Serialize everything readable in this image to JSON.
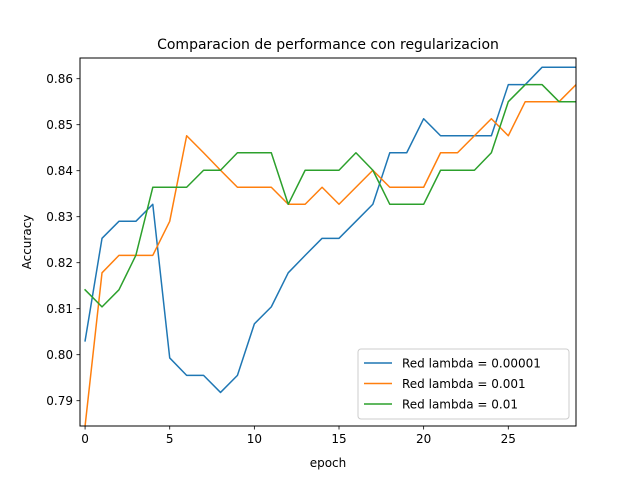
{
  "chart_data": {
    "type": "line",
    "title": "Comparacion de performance con regularizacion",
    "xlabel": "epoch",
    "ylabel": "Accuracy",
    "xlim": [
      -0.3,
      29
    ],
    "ylim": [
      0.7845,
      0.8645
    ],
    "xticks": [
      0,
      5,
      10,
      15,
      20,
      25
    ],
    "yticks": [
      0.79,
      0.8,
      0.81,
      0.82,
      0.83,
      0.84,
      0.85,
      0.86
    ],
    "ytick_labels": [
      "0.79",
      "0.80",
      "0.81",
      "0.82",
      "0.83",
      "0.84",
      "0.85",
      "0.86"
    ],
    "grid": false,
    "legend_position": "lower right",
    "x": [
      0,
      1,
      2,
      3,
      4,
      5,
      6,
      7,
      8,
      9,
      10,
      11,
      12,
      13,
      14,
      15,
      16,
      17,
      18,
      19,
      20,
      21,
      22,
      23,
      24,
      25,
      26,
      27,
      28,
      29
    ],
    "series": [
      {
        "name": "Red lambda = 0.00001",
        "color": "#1f77b4",
        "values": [
          0.803,
          0.8253,
          0.829,
          0.829,
          0.8327,
          0.7993,
          0.7955,
          0.7955,
          0.7918,
          0.7955,
          0.8067,
          0.8104,
          0.8178,
          0.8216,
          0.8253,
          0.8253,
          0.829,
          0.8327,
          0.8439,
          0.8439,
          0.8513,
          0.8476,
          0.8476,
          0.8476,
          0.8476,
          0.8587,
          0.8587,
          0.8625,
          0.8625,
          0.8625
        ]
      },
      {
        "name": "Red lambda = 0.001",
        "color": "#ff7f0e",
        "values": [
          0.7845,
          0.8178,
          0.8216,
          0.8216,
          0.8216,
          0.829,
          0.8476,
          0.8439,
          0.8401,
          0.8364,
          0.8364,
          0.8364,
          0.8327,
          0.8327,
          0.8364,
          0.8327,
          0.8364,
          0.8401,
          0.8364,
          0.8364,
          0.8364,
          0.8439,
          0.8439,
          0.8476,
          0.8513,
          0.8476,
          0.855,
          0.855,
          0.855,
          0.8587
        ]
      },
      {
        "name": "Red lambda = 0.01",
        "color": "#2ca02c",
        "values": [
          0.8141,
          0.8104,
          0.8141,
          0.8216,
          0.8364,
          0.8364,
          0.8364,
          0.8401,
          0.8401,
          0.8439,
          0.8439,
          0.8439,
          0.8327,
          0.8401,
          0.8401,
          0.8401,
          0.8439,
          0.8401,
          0.8327,
          0.8327,
          0.8327,
          0.8401,
          0.8401,
          0.8401,
          0.8439,
          0.855,
          0.8587,
          0.8587,
          0.855,
          0.855
        ]
      }
    ]
  }
}
